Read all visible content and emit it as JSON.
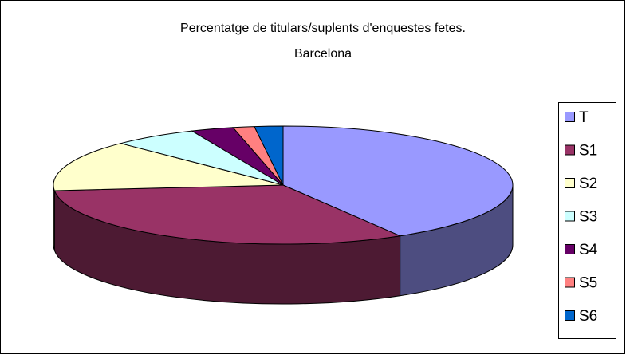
{
  "chart_data": {
    "type": "pie3d",
    "title": "Percentatge de titulars/suplents d'enquestes fetes.",
    "subtitle": "Barcelona",
    "categories": [
      "T",
      "S1",
      "S2",
      "S3",
      "S4",
      "S5",
      "S6"
    ],
    "values": [
      41.5,
      32,
      14,
      6,
      3,
      1.5,
      2
    ],
    "colors": [
      "#9999ff",
      "#993366",
      "#ffffcc",
      "#ccffff",
      "#660066",
      "#ff8080",
      "#0066cc"
    ],
    "legend": "right"
  }
}
